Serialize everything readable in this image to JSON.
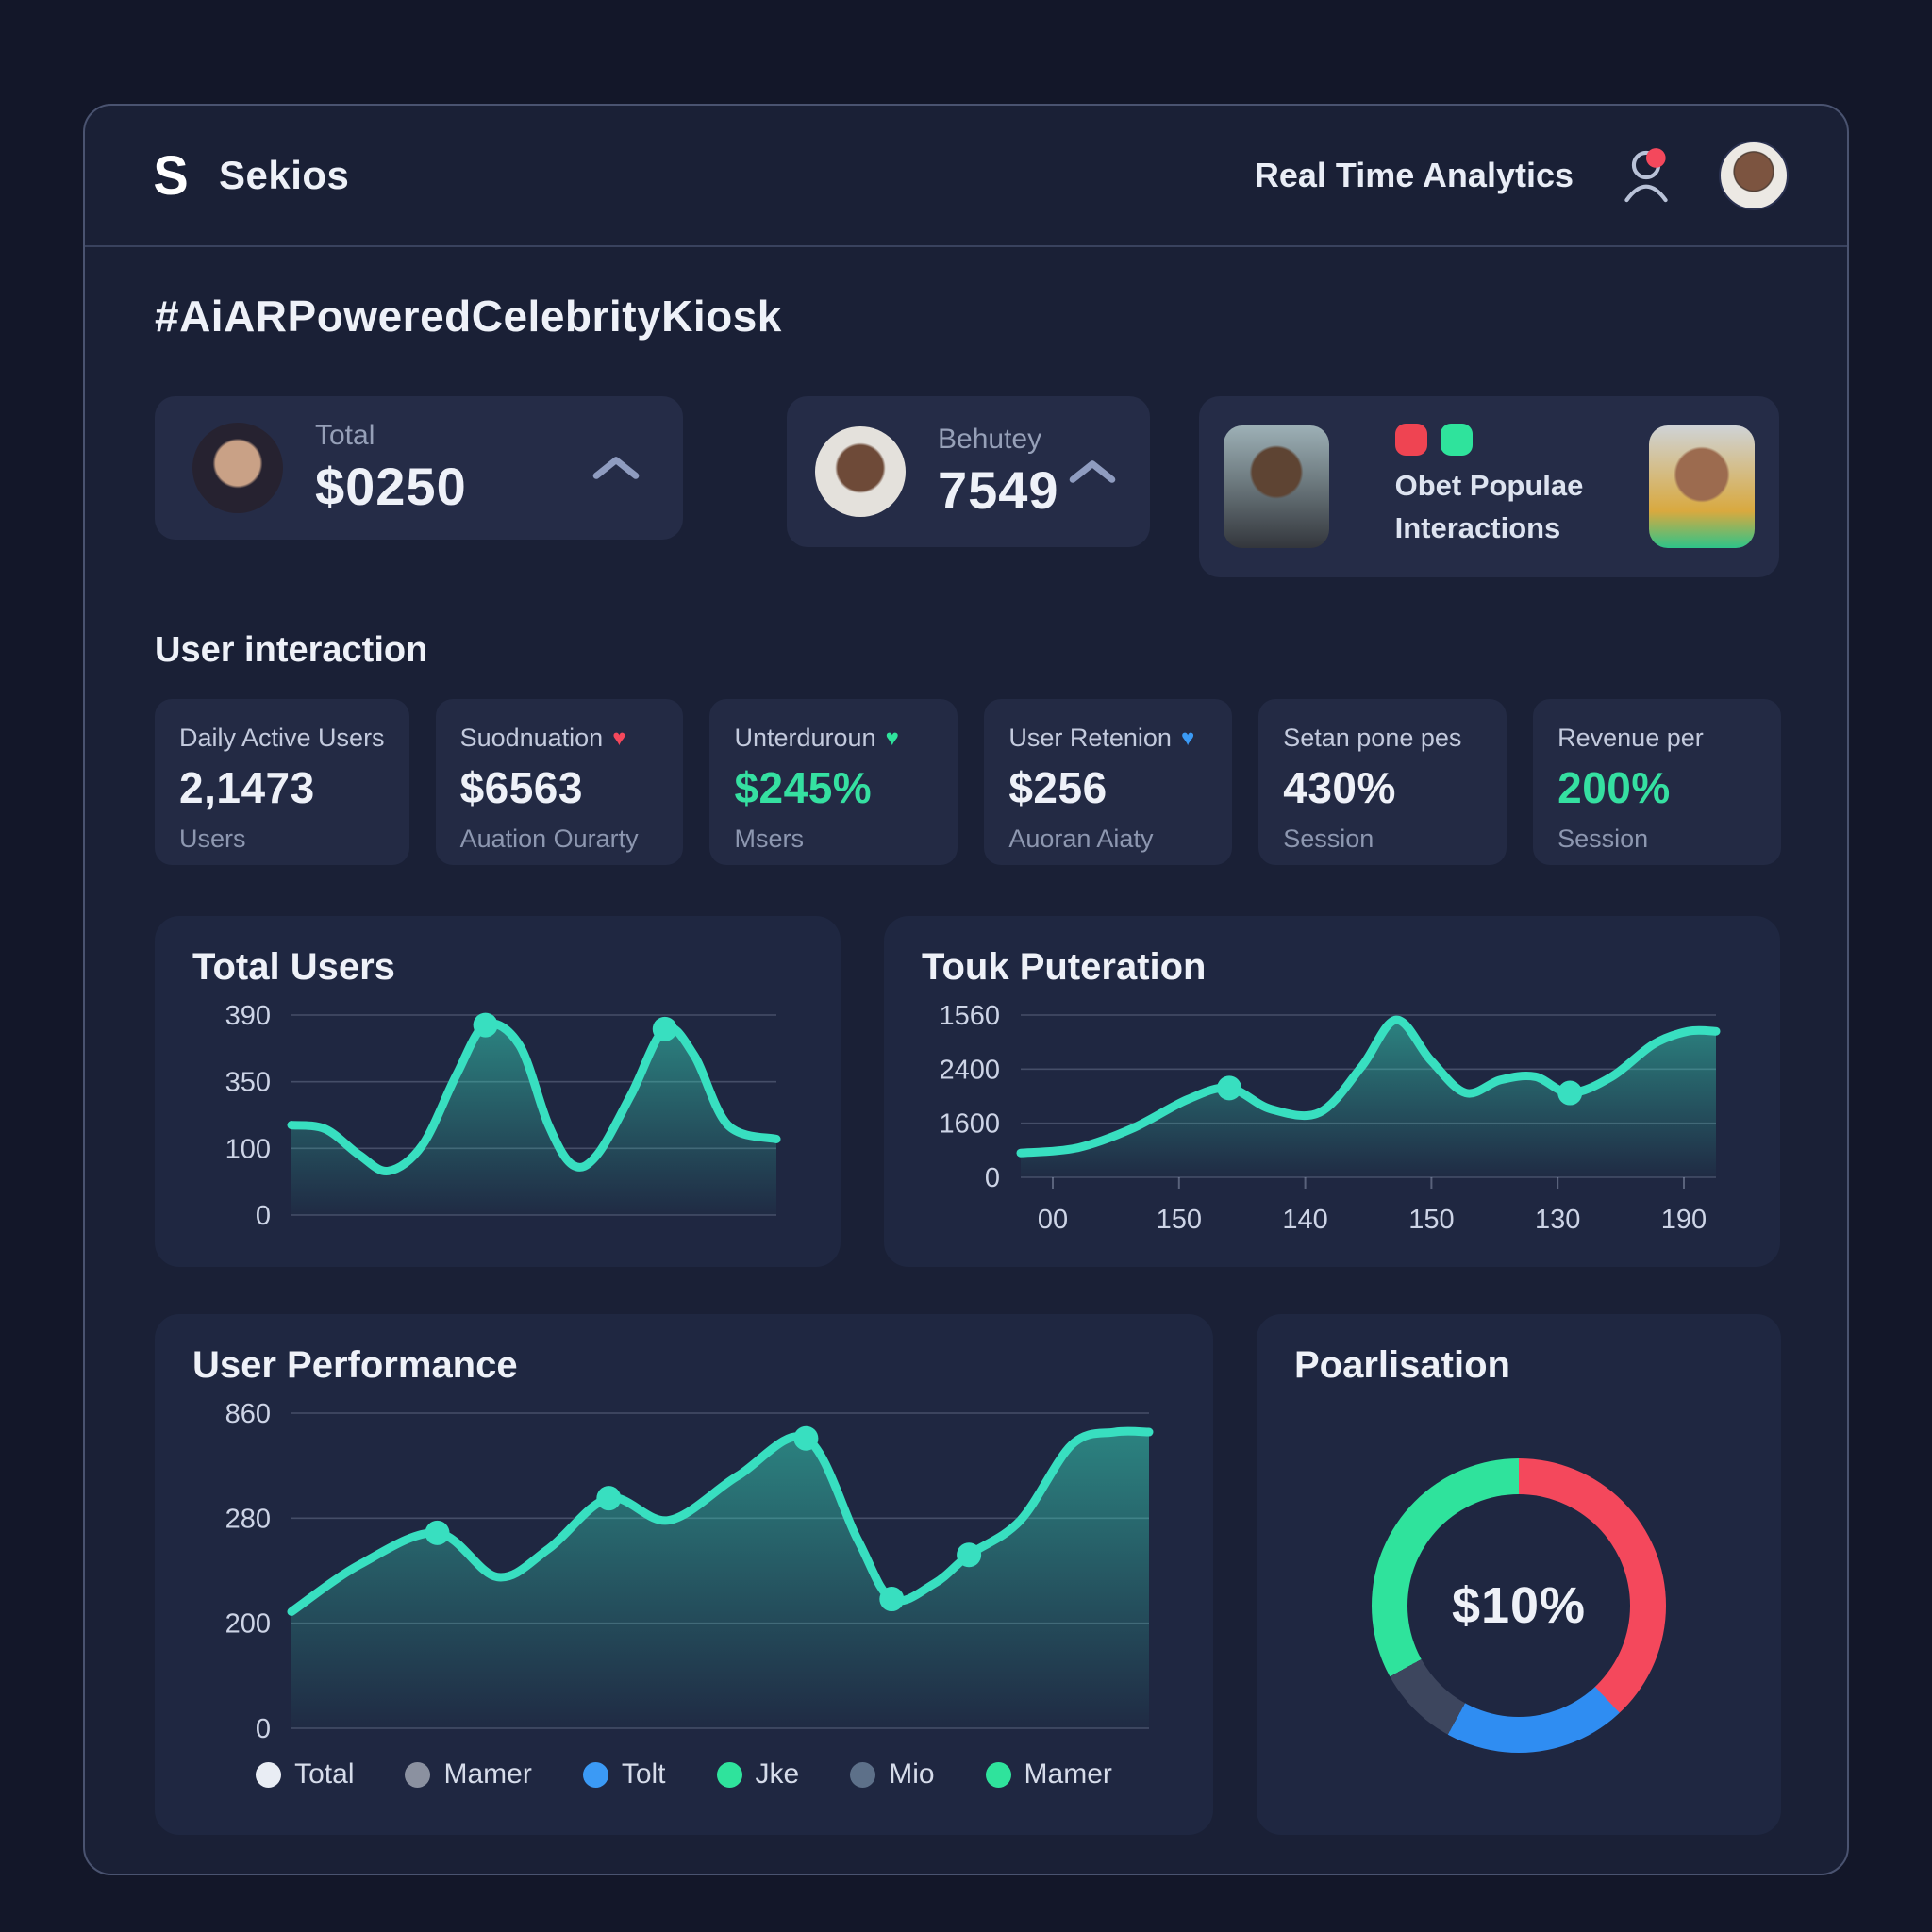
{
  "header": {
    "logo_glyph": "S",
    "brand": "Sekios",
    "nav_title": "Real Time Analytics",
    "icons": {
      "notifications": "person-icon-with-red-dot",
      "expand": "chevron-up-icon"
    }
  },
  "page": {
    "title": "#AiARPoweredCelebrityKiosk",
    "section_heading": "User interaction"
  },
  "summary_cards": [
    {
      "label": "Total",
      "value": "$0250"
    },
    {
      "label": "Behutey",
      "value": "7549"
    },
    {
      "label_line1": "Obet Populae",
      "label_line2": "Interactions",
      "dot_colors": [
        "#ef4452",
        "#2fe39c"
      ]
    }
  ],
  "stat_cards": [
    {
      "title": "Daily Active Users",
      "value": "2,1473",
      "sub": "Users",
      "value_color": "#eef1f8"
    },
    {
      "title": "Suodnuation",
      "value": "$6563",
      "sub": "Auation Ourarty",
      "value_color": "#eef1f8",
      "pin": "#f4485c"
    },
    {
      "title": "Unterduroun",
      "value": "$245%",
      "sub": "Msers",
      "value_color": "#35e0a1",
      "pin": "#2fe39c"
    },
    {
      "title": "User Retenion",
      "value": "$256",
      "sub": "Auoran Aiaty",
      "value_color": "#eef1f8",
      "pin": "#3b9af5"
    },
    {
      "title": "Setan pone pes",
      "value": "430%",
      "sub": "Session",
      "value_color": "#eef1f8"
    },
    {
      "title": "Revenue per",
      "value": "200%",
      "sub": "Session",
      "value_color": "#35e0a1"
    }
  ],
  "chart_data": [
    {
      "id": "total_users",
      "type": "area",
      "title": "Total Users",
      "yticks": [
        "390",
        "350",
        "100",
        "0"
      ],
      "xticks": [],
      "grid": true,
      "line_color": "#38dfc0",
      "points": [
        [
          0,
          0.45
        ],
        [
          0.07,
          0.43
        ],
        [
          0.14,
          0.3
        ],
        [
          0.2,
          0.22
        ],
        [
          0.27,
          0.35
        ],
        [
          0.34,
          0.7
        ],
        [
          0.4,
          0.95
        ],
        [
          0.47,
          0.85
        ],
        [
          0.53,
          0.45
        ],
        [
          0.58,
          0.25
        ],
        [
          0.63,
          0.3
        ],
        [
          0.7,
          0.6
        ],
        [
          0.77,
          0.93
        ],
        [
          0.83,
          0.8
        ],
        [
          0.9,
          0.45
        ],
        [
          1,
          0.38
        ]
      ],
      "marker_indices": [
        6,
        12
      ]
    },
    {
      "id": "touk_puteration",
      "type": "area",
      "title": "Touk Puteration",
      "yticks": [
        "1560",
        "2400",
        "1600",
        "0"
      ],
      "xticks": [
        "00",
        "150",
        "140",
        "150",
        "130",
        "190"
      ],
      "grid": true,
      "line_color": "#38dfc0",
      "points": [
        [
          0,
          0.15
        ],
        [
          0.08,
          0.18
        ],
        [
          0.16,
          0.3
        ],
        [
          0.24,
          0.48
        ],
        [
          0.3,
          0.55
        ],
        [
          0.36,
          0.42
        ],
        [
          0.43,
          0.4
        ],
        [
          0.49,
          0.68
        ],
        [
          0.54,
          0.97
        ],
        [
          0.59,
          0.72
        ],
        [
          0.64,
          0.52
        ],
        [
          0.69,
          0.6
        ],
        [
          0.74,
          0.62
        ],
        [
          0.79,
          0.52
        ],
        [
          0.85,
          0.62
        ],
        [
          0.91,
          0.82
        ],
        [
          0.96,
          0.9
        ],
        [
          1,
          0.9
        ]
      ],
      "marker_indices": [
        4,
        13
      ]
    },
    {
      "id": "user_performance",
      "type": "area",
      "title": "User Performance",
      "yticks": [
        "860",
        "280",
        "200",
        "0"
      ],
      "xticks": [],
      "grid": true,
      "line_color": "#38dfc0",
      "points": [
        [
          0,
          0.37
        ],
        [
          0.08,
          0.52
        ],
        [
          0.17,
          0.62
        ],
        [
          0.24,
          0.48
        ],
        [
          0.3,
          0.57
        ],
        [
          0.37,
          0.73
        ],
        [
          0.44,
          0.66
        ],
        [
          0.52,
          0.8
        ],
        [
          0.6,
          0.92
        ],
        [
          0.66,
          0.6
        ],
        [
          0.7,
          0.41
        ],
        [
          0.75,
          0.46
        ],
        [
          0.79,
          0.55
        ],
        [
          0.85,
          0.66
        ],
        [
          0.91,
          0.9
        ],
        [
          0.96,
          0.94
        ],
        [
          1,
          0.94
        ]
      ],
      "marker_indices": [
        2,
        5,
        8,
        10,
        12
      ],
      "legend": [
        {
          "label": "Total",
          "color": "#e9edf4"
        },
        {
          "label": "Mamer",
          "color": "#8b91a0"
        },
        {
          "label": "Tolt",
          "color": "#3b9af5"
        },
        {
          "label": "Jke",
          "color": "#2fe39c"
        },
        {
          "label": "Mio",
          "color": "#5d7089"
        },
        {
          "label": "Mamer",
          "color": "#2fe39c"
        }
      ],
      "legend_position": "bottom"
    },
    {
      "id": "poarlisation",
      "type": "donut",
      "title": "Poarlisation",
      "center_label": "$10%",
      "segments": [
        {
          "label": "red-segment",
          "value": 38,
          "color": "#f4485c"
        },
        {
          "label": "blue-segment",
          "value": 20,
          "color": "#2f8df2"
        },
        {
          "label": "slate-segment",
          "value": 9,
          "color": "#3d465e"
        },
        {
          "label": "green-segment",
          "value": 33,
          "color": "#2fe39c"
        }
      ]
    }
  ]
}
